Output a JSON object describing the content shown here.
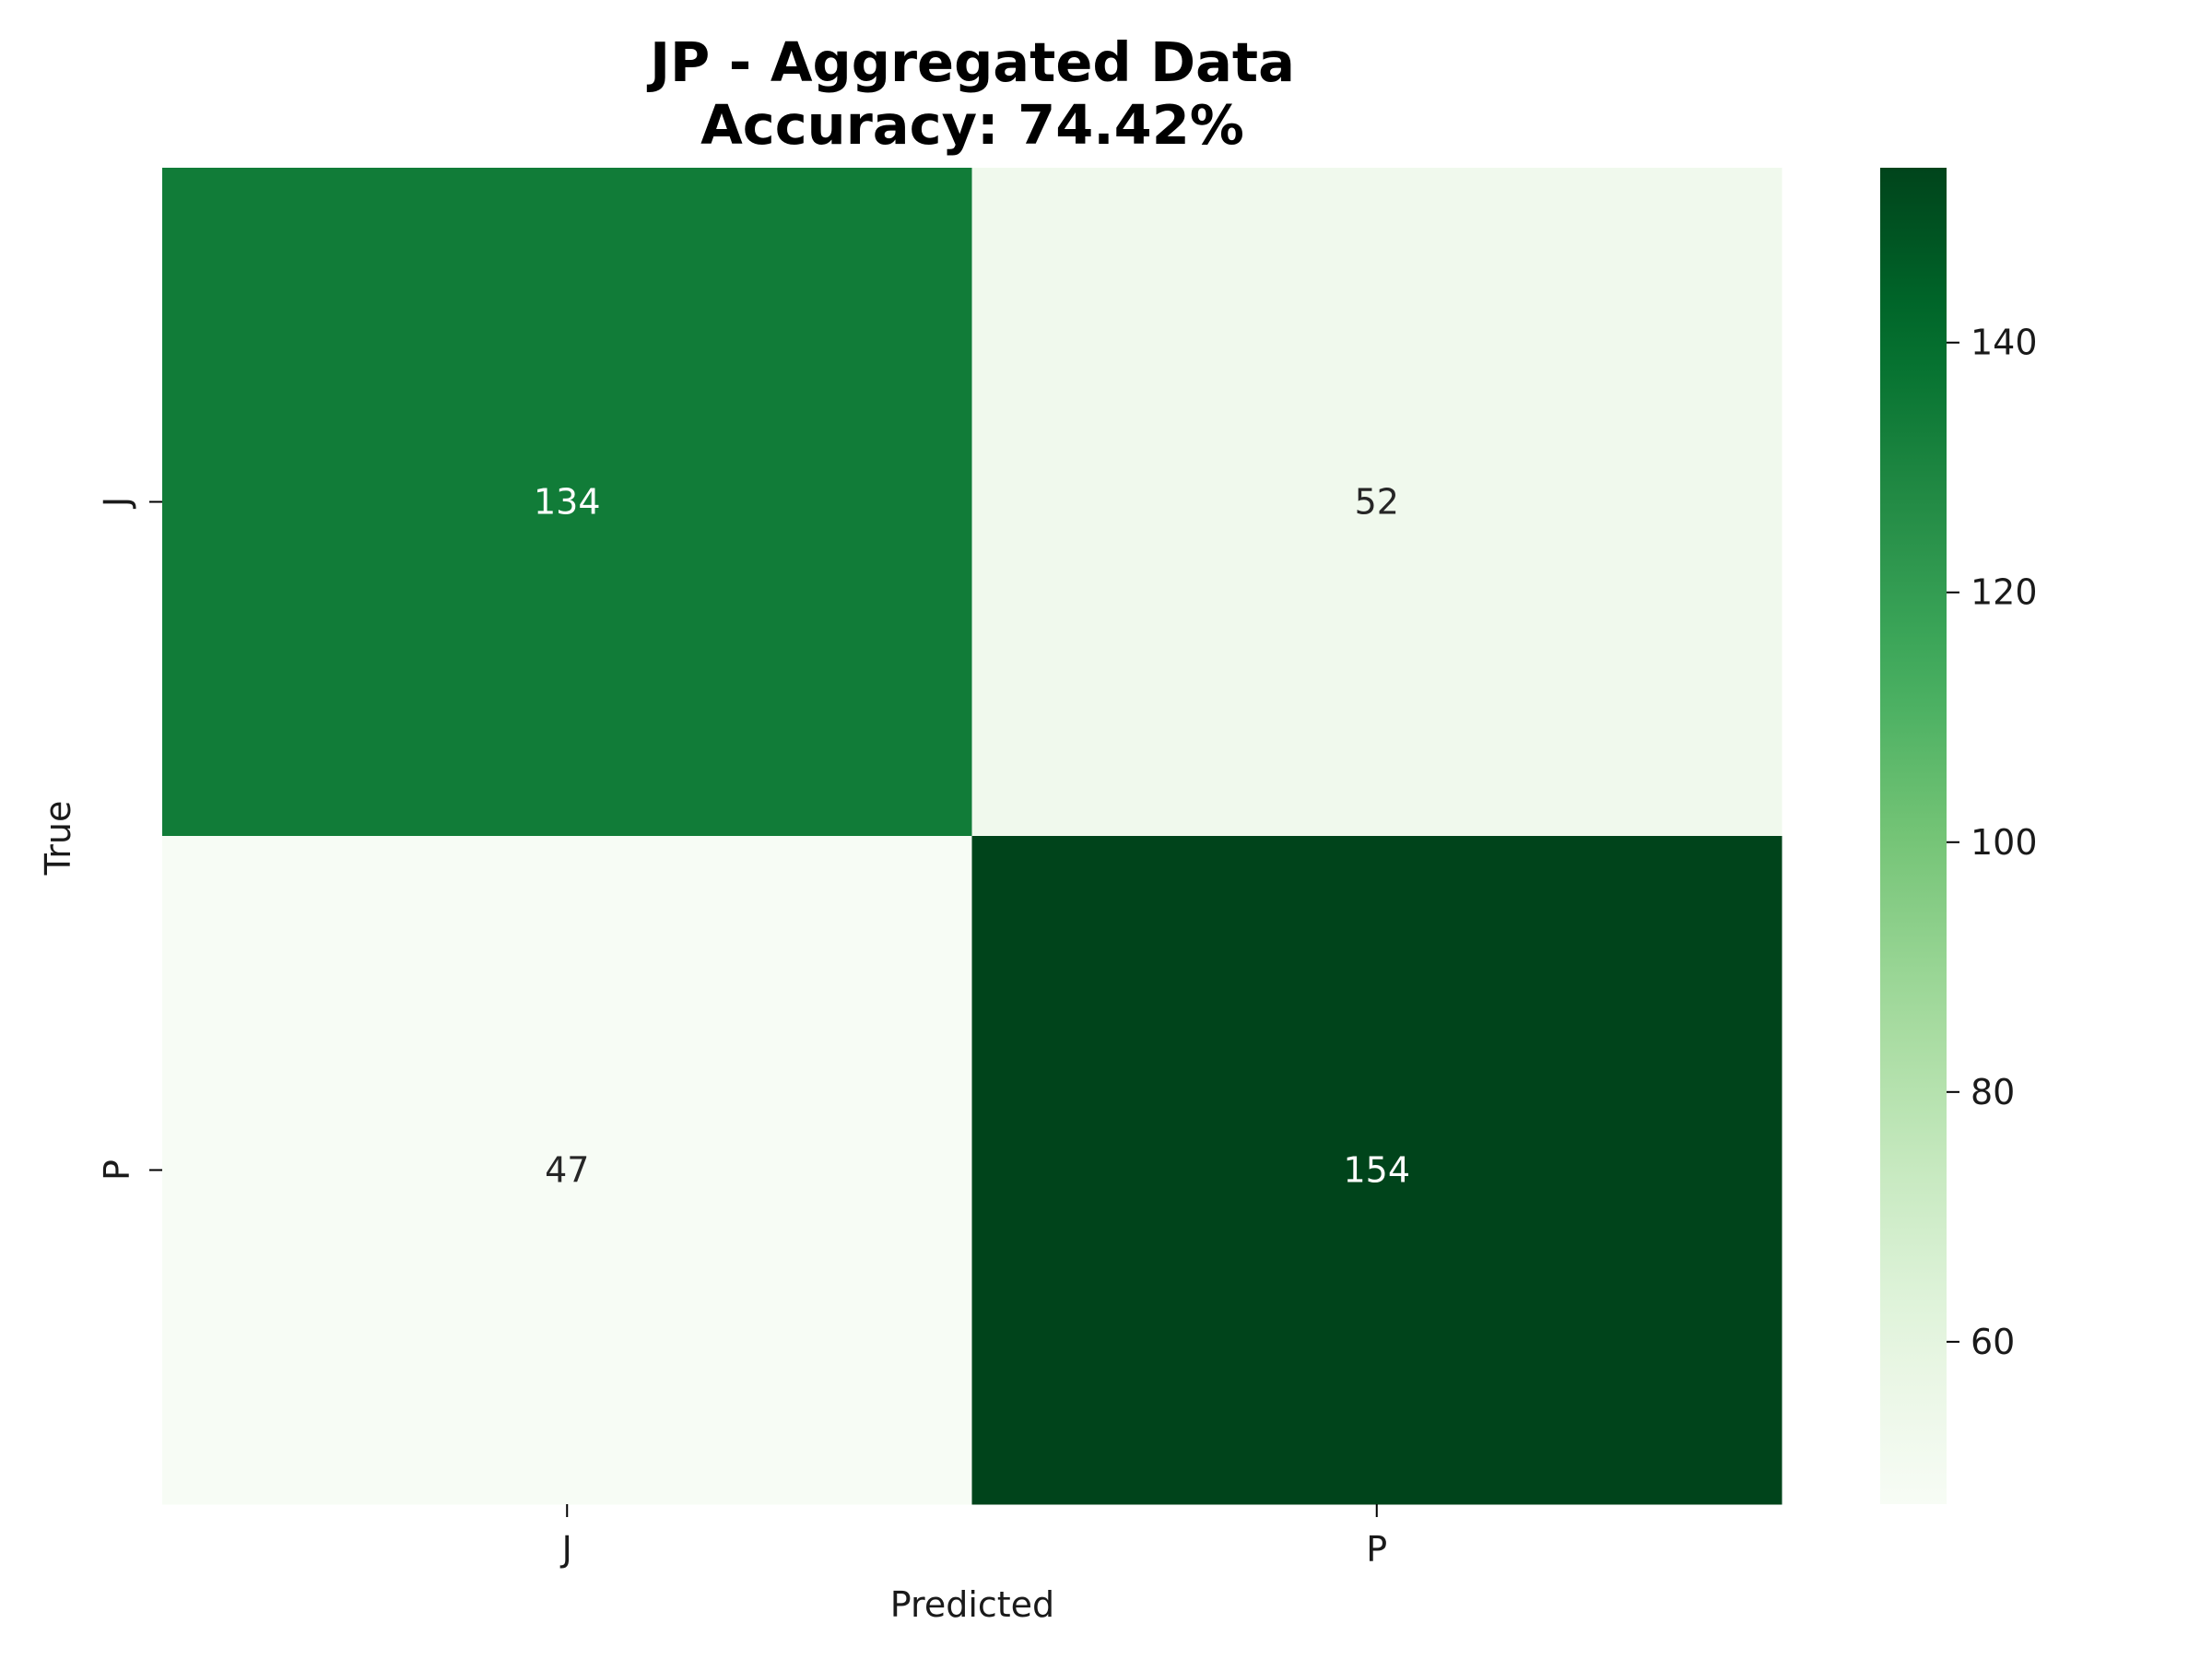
{
  "chart_data": {
    "type": "heatmap",
    "title": "JP - Aggregated Data",
    "subtitle": "Accuracy: 74.42%",
    "xlabel": "Predicted",
    "ylabel": "True",
    "x_categories": [
      "J",
      "P"
    ],
    "y_categories": [
      "J",
      "P"
    ],
    "values": [
      [
        134,
        52
      ],
      [
        47,
        154
      ]
    ],
    "colormap": "Greens",
    "color_range": [
      47,
      154
    ],
    "colorbar": {
      "ticks": [
        60,
        80,
        100,
        120,
        140
      ],
      "position": "right"
    },
    "colors": {
      "low": "#f7fcf5",
      "high": "#00441b",
      "text_on_dark": "#ffffff",
      "text_on_light": "#262626"
    }
  }
}
